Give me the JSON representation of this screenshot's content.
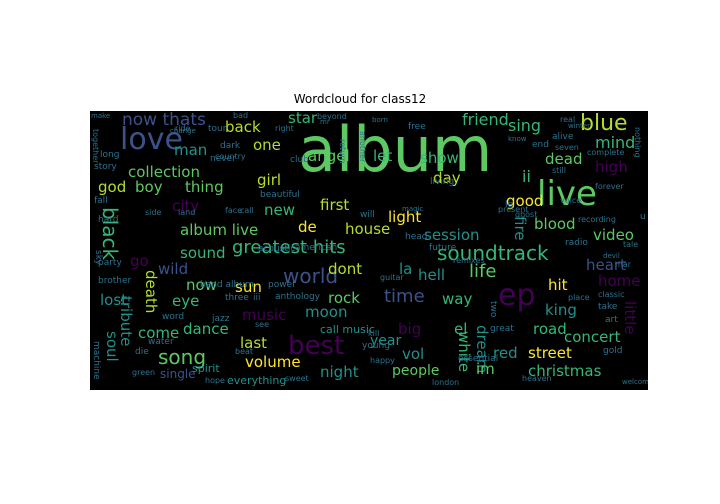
{
  "title": "Wordcloud for class12",
  "colors": {
    "background": "#000000",
    "palette": [
      "#5ec962",
      "#21918c",
      "#3b528b",
      "#440154",
      "#fde725",
      "#35b779",
      "#2c728e",
      "#472d7b",
      "#b5de2b",
      "#26828e"
    ]
  },
  "words": [
    {
      "text": "album",
      "c": 0
    },
    {
      "text": "live",
      "c": 0
    },
    {
      "text": "love",
      "c": 2
    },
    {
      "text": "best",
      "c": 3
    },
    {
      "text": "ep",
      "c": 3
    },
    {
      "text": "blue",
      "c": 8
    },
    {
      "text": "soundtrack",
      "c": 5
    },
    {
      "text": "world",
      "c": 2
    },
    {
      "text": "song",
      "c": 0
    },
    {
      "text": "greatest hits",
      "c": 5
    },
    {
      "text": "life",
      "c": 0
    },
    {
      "text": "black",
      "c": 5
    },
    {
      "text": "now thats",
      "c": 2
    },
    {
      "text": "friend",
      "c": 5
    },
    {
      "text": "sing",
      "c": 5
    },
    {
      "text": "mind",
      "c": 5
    },
    {
      "text": "back",
      "c": 8
    },
    {
      "text": "star",
      "c": 5
    },
    {
      "text": "one",
      "c": 8
    },
    {
      "text": "man",
      "c": 1
    },
    {
      "text": "dead",
      "c": 0
    },
    {
      "text": "high",
      "c": 3
    },
    {
      "text": "ii",
      "c": 5
    },
    {
      "text": "collection",
      "c": 0
    },
    {
      "text": "god",
      "c": 8
    },
    {
      "text": "boy",
      "c": 0
    },
    {
      "text": "thing",
      "c": 0
    },
    {
      "text": "girl",
      "c": 8
    },
    {
      "text": "angel",
      "c": 0
    },
    {
      "text": "let",
      "c": 5
    },
    {
      "text": "show",
      "c": 5
    },
    {
      "text": "day",
      "c": 8
    },
    {
      "text": "city",
      "c": 3
    },
    {
      "text": "new",
      "c": 5
    },
    {
      "text": "first",
      "c": 8
    },
    {
      "text": "light",
      "c": 4
    },
    {
      "text": "good",
      "c": 4
    },
    {
      "text": "album live",
      "c": 0
    },
    {
      "text": "de",
      "c": 4
    },
    {
      "text": "house",
      "c": 8
    },
    {
      "text": "session",
      "c": 1
    },
    {
      "text": "blood",
      "c": 0
    },
    {
      "text": "video",
      "c": 0
    },
    {
      "text": "fire",
      "c": 1
    },
    {
      "text": "sound",
      "c": 5
    },
    {
      "text": "heart",
      "c": 2
    },
    {
      "text": "wild",
      "c": 2
    },
    {
      "text": "go",
      "c": 3
    },
    {
      "text": "dont",
      "c": 8
    },
    {
      "text": "la",
      "c": 1
    },
    {
      "text": "hell",
      "c": 1
    },
    {
      "text": "home",
      "c": 3
    },
    {
      "text": "hit",
      "c": 4
    },
    {
      "text": "now",
      "c": 0
    },
    {
      "text": "sun",
      "c": 4
    },
    {
      "text": "death",
      "c": 8
    },
    {
      "text": "eye",
      "c": 5
    },
    {
      "text": "lost",
      "c": 1
    },
    {
      "text": "rock",
      "c": 0
    },
    {
      "text": "time",
      "c": 2
    },
    {
      "text": "way",
      "c": 5
    },
    {
      "text": "tribute",
      "c": 1
    },
    {
      "text": "music",
      "c": 3
    },
    {
      "text": "moon",
      "c": 1
    },
    {
      "text": "king",
      "c": 1
    },
    {
      "text": "little",
      "c": 3
    },
    {
      "text": "come",
      "c": 5
    },
    {
      "text": "dance",
      "c": 5
    },
    {
      "text": "big",
      "c": 3
    },
    {
      "text": "el",
      "c": 5
    },
    {
      "text": "soul",
      "c": 1
    },
    {
      "text": "last",
      "c": 8
    },
    {
      "text": "road",
      "c": 5
    },
    {
      "text": "concert",
      "c": 5
    },
    {
      "text": "vol",
      "c": 1
    },
    {
      "text": "white",
      "c": 5
    },
    {
      "text": "dream",
      "c": 1
    },
    {
      "text": "red",
      "c": 1
    },
    {
      "text": "street",
      "c": 4
    },
    {
      "text": "volume",
      "c": 4
    },
    {
      "text": "night",
      "c": 1
    },
    {
      "text": "people",
      "c": 0
    },
    {
      "text": "im",
      "c": 0
    },
    {
      "text": "christmas",
      "c": 5
    },
    {
      "text": "year",
      "c": 1
    },
    {
      "text": "call music",
      "c": 1
    },
    {
      "text": "single",
      "c": 2
    },
    {
      "text": "spirit",
      "c": 1
    },
    {
      "text": "everything",
      "c": 1
    },
    {
      "text": "jazz",
      "c": 6
    },
    {
      "text": "anthology",
      "c": 6
    },
    {
      "text": "three",
      "c": 6
    },
    {
      "text": "iii",
      "c": 6
    },
    {
      "text": "band album",
      "c": 6
    },
    {
      "text": "power",
      "c": 6
    },
    {
      "text": "acoustic",
      "c": 6
    },
    {
      "text": "american",
      "c": 6
    },
    {
      "text": "party",
      "c": 6
    },
    {
      "text": "sky",
      "c": 6
    },
    {
      "text": "brother",
      "c": 6
    },
    {
      "text": "word",
      "c": 6
    },
    {
      "text": "water",
      "c": 6
    },
    {
      "text": "die",
      "c": 6
    },
    {
      "text": "machine",
      "c": 6
    },
    {
      "text": "green",
      "c": 6
    },
    {
      "text": "hope",
      "c": 6
    },
    {
      "text": "beat",
      "c": 6
    },
    {
      "text": "sweet",
      "c": 6
    },
    {
      "text": "heaven",
      "c": 6
    },
    {
      "text": "london",
      "c": 6
    },
    {
      "text": "young",
      "c": 6
    },
    {
      "text": "great",
      "c": 6
    },
    {
      "text": "essential",
      "c": 6
    },
    {
      "text": "kill",
      "c": 6
    },
    {
      "text": "gold",
      "c": 6
    },
    {
      "text": "take",
      "c": 6
    },
    {
      "text": "art",
      "c": 6
    },
    {
      "text": "classic",
      "c": 6
    },
    {
      "text": "two",
      "c": 6
    },
    {
      "text": "place",
      "c": 6
    },
    {
      "text": "radio",
      "c": 6
    },
    {
      "text": "head",
      "c": 6
    },
    {
      "text": "future",
      "c": 6
    },
    {
      "text": "remixes",
      "c": 6
    },
    {
      "text": "guitar",
      "c": 6
    },
    {
      "text": "tale",
      "c": 6
    },
    {
      "text": "recording",
      "c": 6
    },
    {
      "text": "mar",
      "c": 6
    },
    {
      "text": "devil",
      "c": 6
    },
    {
      "text": "side",
      "c": 6
    },
    {
      "text": "land",
      "c": 6
    },
    {
      "text": "face",
      "c": 6
    },
    {
      "text": "call",
      "c": 6
    },
    {
      "text": "will",
      "c": 6
    },
    {
      "text": "present",
      "c": 6
    },
    {
      "text": "ghost",
      "c": 6
    },
    {
      "text": "voice",
      "c": 6
    },
    {
      "text": "forever",
      "c": 6
    },
    {
      "text": "complete",
      "c": 6
    },
    {
      "text": "nothing",
      "c": 6
    },
    {
      "text": "still",
      "c": 6
    },
    {
      "text": "seven",
      "c": 6
    },
    {
      "text": "winter",
      "c": 6
    },
    {
      "text": "alive",
      "c": 6
    },
    {
      "text": "end",
      "c": 6
    },
    {
      "text": "real",
      "c": 6
    },
    {
      "text": "know",
      "c": 6
    },
    {
      "text": "free",
      "c": 6
    },
    {
      "text": "living",
      "c": 6
    },
    {
      "text": "beautiful",
      "c": 6
    },
    {
      "text": "never",
      "c": 6
    },
    {
      "text": "club",
      "c": 6
    },
    {
      "text": "another",
      "c": 6
    },
    {
      "text": "return",
      "c": 6
    },
    {
      "text": "beyond",
      "c": 6
    },
    {
      "text": "country",
      "c": 6
    },
    {
      "text": "change",
      "c": 6
    },
    {
      "text": "right",
      "c": 6
    },
    {
      "text": "tour",
      "c": 6
    },
    {
      "text": "ride",
      "c": 6
    },
    {
      "text": "bad",
      "c": 6
    },
    {
      "text": "dark",
      "c": 6
    },
    {
      "text": "make",
      "c": 6
    },
    {
      "text": "together",
      "c": 6
    },
    {
      "text": "story",
      "c": 6
    },
    {
      "text": "fall",
      "c": 6
    },
    {
      "text": "hard",
      "c": 6
    },
    {
      "text": "long",
      "c": 6
    },
    {
      "text": "see",
      "c": 6
    },
    {
      "text": "happy",
      "c": 6
    },
    {
      "text": "born",
      "c": 6
    },
    {
      "text": "magic",
      "c": 6
    },
    {
      "text": "welcome",
      "c": 6
    },
    {
      "text": "u",
      "c": 6
    },
    {
      "text": "le",
      "c": 6
    },
    {
      "text": "mr",
      "c": 6
    }
  ]
}
